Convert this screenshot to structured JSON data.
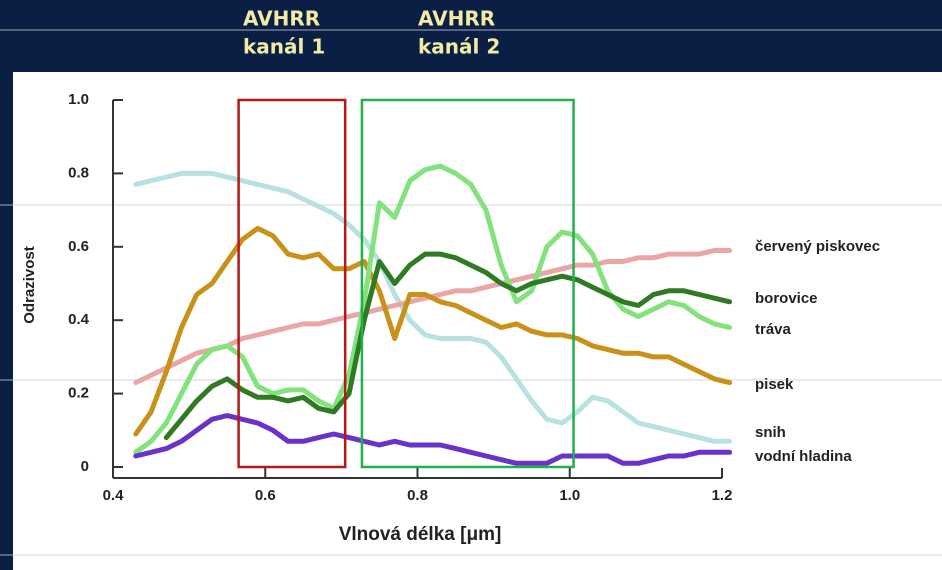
{
  "chart_data": {
    "type": "line",
    "xlabel": "Vlnová délka [μm]",
    "ylabel": "Odrazivost",
    "xlim": [
      0.4,
      1.2
    ],
    "ylim": [
      -0.03,
      1.0
    ],
    "xticks": [
      0.4,
      0.6,
      0.8,
      {
        "value": 1.0,
        "label": "1.0"
      },
      1.2
    ],
    "yticks": [
      0,
      0.2,
      0.4,
      0.6,
      0.8,
      {
        "value": 1.0,
        "label": "1.0"
      }
    ],
    "bands": [
      {
        "label": [
          "AVHRR",
          "kanál 1"
        ],
        "xlim": [
          0.565,
          0.705
        ],
        "color": "#b41818"
      },
      {
        "label": [
          "AVHRR",
          "kanál 2"
        ],
        "xlim": [
          0.727,
          1.005
        ],
        "color": "#22b04a"
      }
    ],
    "x": [
      0.43,
      0.45,
      0.47,
      0.49,
      0.51,
      0.53,
      0.55,
      0.57,
      0.59,
      0.61,
      0.63,
      0.65,
      0.67,
      0.69,
      0.71,
      0.73,
      0.75,
      0.77,
      0.79,
      0.81,
      0.83,
      0.85,
      0.87,
      0.89,
      0.91,
      0.93,
      0.95,
      0.97,
      0.99,
      1.01,
      1.03,
      1.05,
      1.07,
      1.09,
      1.11,
      1.13,
      1.15,
      1.17,
      1.19,
      1.21
    ],
    "series": [
      {
        "name": "snih",
        "color": "#b8e2e2",
        "values": [
          0.77,
          0.78,
          0.79,
          0.8,
          0.8,
          0.8,
          0.79,
          0.78,
          0.77,
          0.76,
          0.75,
          0.73,
          0.71,
          0.69,
          0.66,
          0.62,
          0.56,
          0.47,
          0.4,
          0.36,
          0.35,
          0.35,
          0.35,
          0.34,
          0.3,
          0.24,
          0.18,
          0.13,
          0.12,
          0.15,
          0.19,
          0.18,
          0.15,
          0.12,
          0.11,
          0.1,
          0.09,
          0.08,
          0.07,
          0.07
        ]
      },
      {
        "name": "červený piskovec",
        "color": "#eaa6a6",
        "values": [
          0.23,
          0.25,
          0.27,
          0.29,
          0.31,
          0.32,
          0.33,
          0.35,
          0.36,
          0.37,
          0.38,
          0.39,
          0.39,
          0.4,
          0.41,
          0.42,
          0.43,
          0.44,
          0.45,
          0.46,
          0.47,
          0.48,
          0.48,
          0.49,
          0.5,
          0.51,
          0.52,
          0.53,
          0.54,
          0.55,
          0.55,
          0.56,
          0.56,
          0.57,
          0.57,
          0.58,
          0.58,
          0.58,
          0.59,
          0.59
        ]
      },
      {
        "name": "pisek",
        "color": "#c99118",
        "values": [
          0.09,
          0.15,
          0.26,
          0.38,
          0.47,
          0.5,
          0.56,
          0.62,
          0.65,
          0.63,
          0.58,
          0.57,
          0.58,
          0.54,
          0.54,
          0.56,
          0.48,
          0.35,
          0.47,
          0.47,
          0.45,
          0.44,
          0.42,
          0.4,
          0.38,
          0.39,
          0.37,
          0.36,
          0.36,
          0.35,
          0.33,
          0.32,
          0.31,
          0.31,
          0.3,
          0.3,
          0.28,
          0.26,
          0.24,
          0.23
        ]
      },
      {
        "name": "tráva",
        "color": "#82e27c",
        "values": [
          0.04,
          0.07,
          0.12,
          0.2,
          0.28,
          0.32,
          0.33,
          0.3,
          0.22,
          0.2,
          0.21,
          0.21,
          0.18,
          0.16,
          0.25,
          0.45,
          0.72,
          0.68,
          0.78,
          0.81,
          0.82,
          0.8,
          0.77,
          0.7,
          0.55,
          0.45,
          0.48,
          0.6,
          0.64,
          0.63,
          0.58,
          0.48,
          0.43,
          0.41,
          0.43,
          0.45,
          0.44,
          0.41,
          0.39,
          0.38
        ]
      },
      {
        "name": "borovice",
        "color": "#2f7a22",
        "values": [
          null,
          null,
          0.08,
          0.13,
          0.18,
          0.22,
          0.24,
          0.21,
          0.19,
          0.19,
          0.18,
          0.19,
          0.16,
          0.15,
          0.2,
          0.4,
          0.56,
          0.5,
          0.55,
          0.58,
          0.58,
          0.57,
          0.55,
          0.53,
          0.5,
          0.48,
          0.5,
          0.51,
          0.52,
          0.51,
          0.49,
          0.47,
          0.45,
          0.44,
          0.47,
          0.48,
          0.48,
          0.47,
          0.46,
          0.45
        ]
      },
      {
        "name": "vodní hladina",
        "color": "#6a32c8",
        "values": [
          0.03,
          0.04,
          0.05,
          0.07,
          0.1,
          0.13,
          0.14,
          0.13,
          0.12,
          0.1,
          0.07,
          0.07,
          0.08,
          0.09,
          0.08,
          0.07,
          0.06,
          0.07,
          0.06,
          0.06,
          0.06,
          0.05,
          0.04,
          0.03,
          0.02,
          0.01,
          0.01,
          0.01,
          0.03,
          0.03,
          0.03,
          0.03,
          0.01,
          0.01,
          0.02,
          0.03,
          0.03,
          0.04,
          0.04,
          0.04
        ]
      }
    ]
  }
}
